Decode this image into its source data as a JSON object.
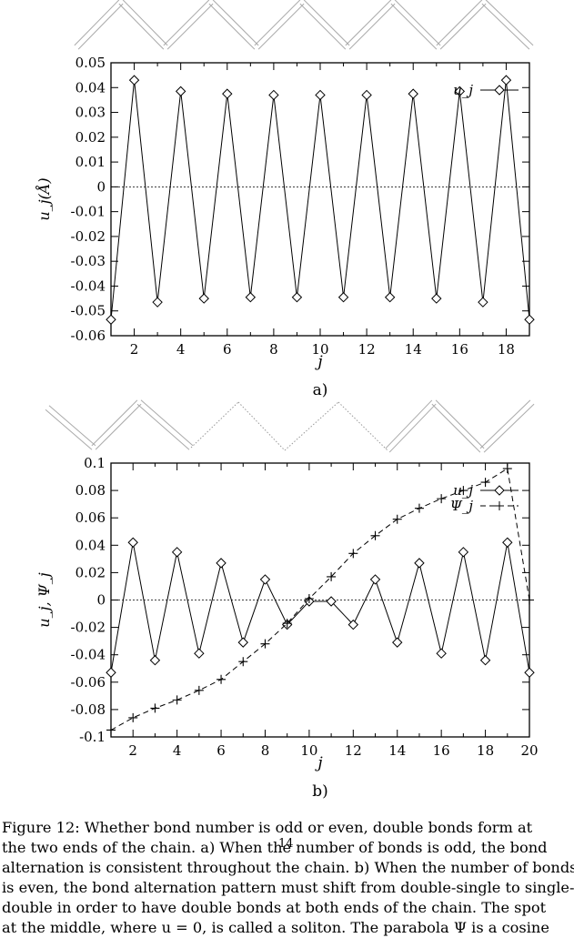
{
  "figure": {
    "panels": [
      {
        "id": "a",
        "label": "a)",
        "ylabel": "u_j(Å)",
        "xlabel": "j",
        "legend": [
          {
            "name": "u_j"
          }
        ],
        "chain_label": ""
      },
      {
        "id": "b",
        "label": "b)",
        "ylabel": "u_j, Ψ_j",
        "xlabel": "j",
        "legend": [
          {
            "name": "u_j"
          },
          {
            "name": "Ψ_j"
          }
        ]
      }
    ]
  },
  "chart_data": [
    {
      "type": "line",
      "title": "",
      "xlabel": "j",
      "ylabel": "u_j(Å)",
      "xlim": [
        1,
        19
      ],
      "ylim": [
        -0.06,
        0.05
      ],
      "xticks": [
        "2",
        "4",
        "6",
        "8",
        "10",
        "12",
        "14",
        "16",
        "18"
      ],
      "yticks": [
        "0.05",
        "0.04",
        "0.03",
        "0.02",
        "0.01",
        "0",
        "-0.01",
        "-0.02",
        "-0.03",
        "-0.04",
        "-0.05",
        "-0.06"
      ],
      "grid": false,
      "legend_position": "top-right",
      "series": [
        {
          "name": "u_j",
          "marker": "diamond",
          "line": "solid",
          "x": [
            1,
            2,
            3,
            4,
            5,
            6,
            7,
            8,
            9,
            10,
            11,
            12,
            13,
            14,
            15,
            16,
            17,
            18,
            19
          ],
          "y": [
            -0.0535,
            0.043,
            -0.0465,
            0.0385,
            -0.045,
            0.0375,
            -0.0445,
            0.037,
            -0.0445,
            0.037,
            -0.0445,
            0.037,
            -0.0445,
            0.0375,
            -0.045,
            0.0385,
            -0.0465,
            0.043,
            -0.0535
          ]
        }
      ]
    },
    {
      "type": "line",
      "title": "",
      "xlabel": "j",
      "ylabel": "u_j, Ψ_j",
      "xlim": [
        1,
        20
      ],
      "ylim": [
        -0.1,
        0.1
      ],
      "xticks": [
        "2",
        "4",
        "6",
        "8",
        "10",
        "12",
        "14",
        "16",
        "18",
        "20"
      ],
      "yticks": [
        "0.1",
        "0.08",
        "0.06",
        "0.04",
        "0.02",
        "0",
        "-0.02",
        "-0.04",
        "-0.06",
        "-0.08",
        "-0.1"
      ],
      "grid": false,
      "legend_position": "top-right",
      "series": [
        {
          "name": "u_j",
          "marker": "diamond",
          "line": "solid",
          "x": [
            1,
            2,
            3,
            4,
            5,
            6,
            7,
            8,
            9,
            10,
            11,
            12,
            13,
            14,
            15,
            16,
            17,
            18,
            19,
            20
          ],
          "y": [
            -0.053,
            0.042,
            -0.044,
            0.035,
            -0.039,
            0.027,
            -0.031,
            0.015,
            -0.018,
            -0.001,
            -0.001,
            -0.018,
            0.015,
            -0.031,
            0.027,
            -0.039,
            0.035,
            -0.044,
            0.042,
            -0.053
          ]
        },
        {
          "name": "Ψ_j",
          "marker": "plus",
          "line": "dashed",
          "x": [
            1,
            2,
            3,
            4,
            5,
            6,
            7,
            8,
            9,
            10,
            11,
            12,
            13,
            14,
            15,
            16,
            17,
            18,
            19,
            20
          ],
          "y": [
            -0.095,
            -0.086,
            -0.079,
            -0.073,
            -0.066,
            -0.058,
            -0.045,
            -0.032,
            -0.017,
            0.001,
            0.017,
            0.034,
            0.047,
            0.059,
            0.067,
            0.074,
            0.08,
            0.086,
            0.096,
            0.0
          ]
        }
      ]
    }
  ],
  "caption": {
    "lines": [
      "Figure 12: Whether bond number is odd or even, double bonds form at",
      "the two ends of the chain.  a) When the number of bonds is odd, the bond",
      "alternation is consistent throughout the chain.  b) When the number of bonds",
      "is even, the bond alternation pattern must shift from double-single to single-",
      "double in order to have double bonds at both ends of the chain.  The spot",
      "at the middle, where u = 0, is called a soliton.  The parabola Ψ is a cosine"
    ]
  },
  "page_number": "14"
}
